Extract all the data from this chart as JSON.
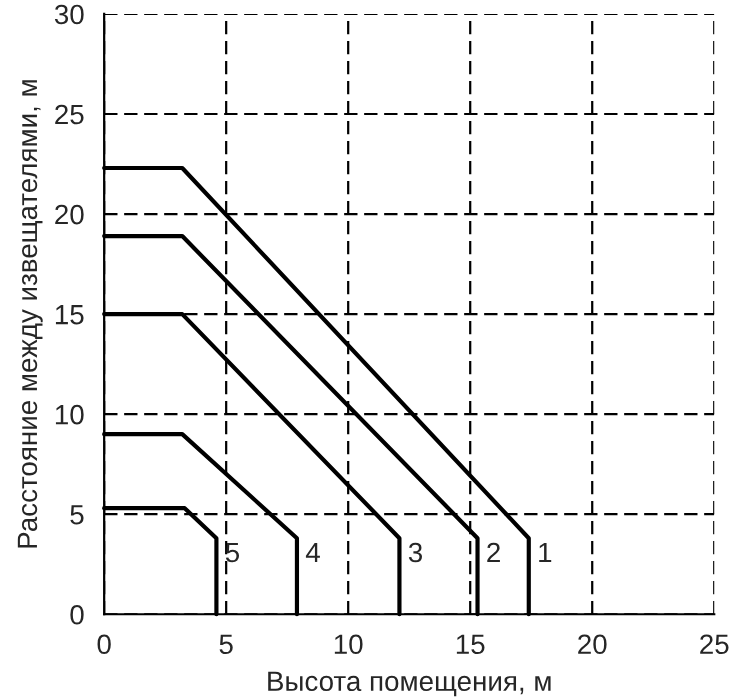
{
  "chart_data": {
    "type": "line",
    "xlabel": "Высота помещения, м",
    "ylabel": "Расстояние между извещателями, м",
    "xlim": [
      0,
      25
    ],
    "ylim": [
      0,
      30
    ],
    "xticks": [
      0,
      5,
      10,
      15,
      20,
      25
    ],
    "yticks": [
      0,
      5,
      10,
      15,
      20,
      25,
      30
    ],
    "grid": true,
    "line_style": "solid",
    "marker": "none",
    "series": [
      {
        "name": "1",
        "color": "#000000",
        "x": [
          0,
          3.2,
          17.4,
          17.4
        ],
        "values": [
          22.3,
          22.3,
          3.8,
          0
        ]
      },
      {
        "name": "2",
        "color": "#000000",
        "x": [
          0,
          3.2,
          15.3,
          15.3
        ],
        "values": [
          18.9,
          18.9,
          3.8,
          0
        ]
      },
      {
        "name": "3",
        "color": "#000000",
        "x": [
          0,
          3.2,
          12.1,
          12.1
        ],
        "values": [
          15,
          15,
          3.8,
          0
        ]
      },
      {
        "name": "4",
        "color": "#000000",
        "x": [
          0,
          3.2,
          7.9,
          7.9
        ],
        "values": [
          9,
          9,
          3.8,
          0
        ]
      },
      {
        "name": "5",
        "color": "#000000",
        "x": [
          0,
          3.3,
          4.6,
          4.6
        ],
        "values": [
          5.3,
          5.3,
          3.8,
          0
        ]
      }
    ]
  }
}
